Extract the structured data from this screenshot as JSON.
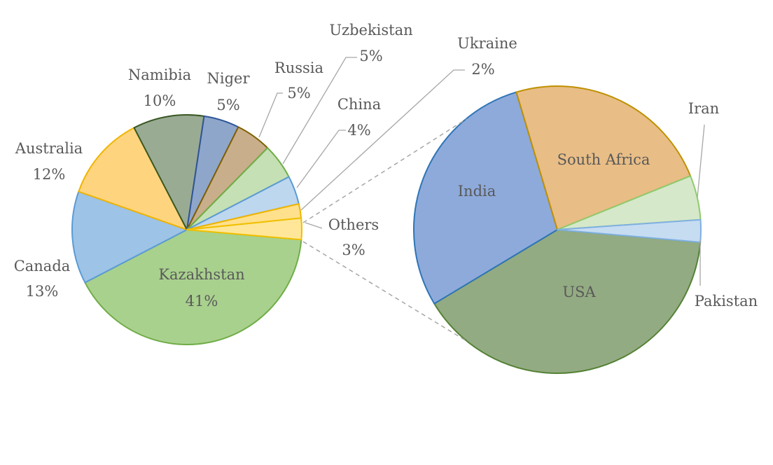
{
  "chart_data": [
    {
      "type": "pie",
      "slices": [
        {
          "label": "Kazakhstan",
          "value": 41,
          "value_label": "41%",
          "fill": "#a9d18e",
          "stroke": "#70ad47"
        },
        {
          "label": "Canada",
          "value": 13,
          "value_label": "13%",
          "fill": "#9dc3e6",
          "stroke": "#5b9bd5"
        },
        {
          "label": "Australia",
          "value": 12,
          "value_label": "12%",
          "fill": "#ffd47f",
          "stroke": "#f0b400"
        },
        {
          "label": "Namibia",
          "value": 10,
          "value_label": "10%",
          "fill": "#9aab94",
          "stroke": "#385723"
        },
        {
          "label": "Niger",
          "value": 5,
          "value_label": "5%",
          "fill": "#8fa6cb",
          "stroke": "#2f5597"
        },
        {
          "label": "Russia",
          "value": 5,
          "value_label": "5%",
          "fill": "#c9ae8c",
          "stroke": "#7f6000"
        },
        {
          "label": "Uzbekistan",
          "value": 5,
          "value_label": "5%",
          "fill": "#c5e0b4",
          "stroke": "#70ad47"
        },
        {
          "label": "China",
          "value": 4,
          "value_label": "4%",
          "fill": "#bdd7ee",
          "stroke": "#5b9bd5"
        },
        {
          "label": "Ukraine",
          "value": 2,
          "value_label": "2%",
          "fill": "#ffe08c",
          "stroke": "#f0b400"
        },
        {
          "label": "Others",
          "value": 3,
          "value_label": "3%",
          "fill": "#ffe699",
          "stroke": "#f0c000"
        }
      ]
    },
    {
      "type": "pie",
      "slices": [
        {
          "label": "USA",
          "value": 40,
          "fill": "#93ab82",
          "stroke": "#548235"
        },
        {
          "label": "India",
          "value": 29,
          "fill": "#8eaadb",
          "stroke": "#2e75b6"
        },
        {
          "label": "South Africa",
          "value": 23.5,
          "fill": "#e8bd86",
          "stroke": "#bf9000"
        },
        {
          "label": "Iran",
          "value": 5,
          "fill": "#d5e8c9",
          "stroke": "#8fca6e"
        },
        {
          "label": "Pakistan",
          "value": 2.5,
          "fill": "#c6dcf1",
          "stroke": "#7fb0e0"
        }
      ]
    }
  ]
}
